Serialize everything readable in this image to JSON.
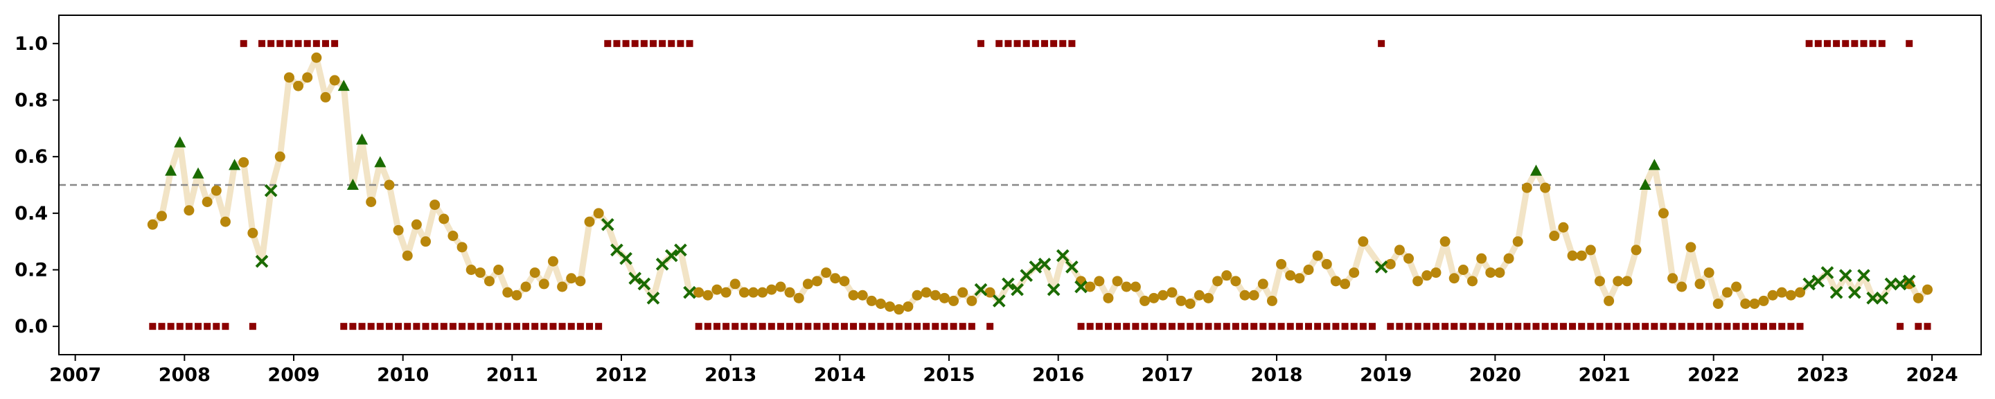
{
  "chart_data": {
    "type": "scatter",
    "title": "",
    "xlabel": "",
    "ylabel": "",
    "x_axis": {
      "type": "year",
      "range": [
        2006.85,
        2024.45
      ],
      "ticks": [
        "2007",
        "2008",
        "2009",
        "2010",
        "2011",
        "2012",
        "2013",
        "2014",
        "2015",
        "2016",
        "2017",
        "2018",
        "2019",
        "2020",
        "2021",
        "2022",
        "2023",
        "2024"
      ]
    },
    "y_axis": {
      "range": [
        -0.1,
        1.1
      ],
      "ticks": [
        "0.0",
        "0.2",
        "0.4",
        "0.6",
        "0.8",
        "1.0"
      ]
    },
    "threshold": 0.5,
    "grid": false,
    "colors": {
      "line": "#f2e4c6",
      "circle": "#b8860b",
      "triangle": "#1a6b00",
      "cross": "#1a6b00",
      "square": "#8b0000",
      "threshold": "#888888"
    },
    "series": [
      {
        "marker": "circle",
        "points": [
          [
            "2007-09",
            0.36
          ],
          [
            "2007-10",
            0.39
          ],
          [
            "2008-01",
            0.41
          ],
          [
            "2008-03",
            0.44
          ],
          [
            "2008-04",
            0.48
          ],
          [
            "2008-05",
            0.37
          ],
          [
            "2008-07",
            0.58
          ],
          [
            "2008-08",
            0.33
          ],
          [
            "2008-11",
            0.6
          ],
          [
            "2008-12",
            0.88
          ],
          [
            "2009-01",
            0.85
          ],
          [
            "2009-02",
            0.88
          ],
          [
            "2009-03",
            0.95
          ],
          [
            "2009-04",
            0.81
          ],
          [
            "2009-05",
            0.87
          ],
          [
            "2009-09",
            0.44
          ],
          [
            "2009-11",
            0.5
          ],
          [
            "2009-12",
            0.34
          ],
          [
            "2010-01",
            0.25
          ],
          [
            "2010-02",
            0.36
          ],
          [
            "2010-03",
            0.3
          ],
          [
            "2010-04",
            0.43
          ],
          [
            "2010-05",
            0.38
          ],
          [
            "2010-06",
            0.32
          ],
          [
            "2010-07",
            0.28
          ],
          [
            "2010-08",
            0.2
          ],
          [
            "2010-09",
            0.19
          ],
          [
            "2010-10",
            0.16
          ],
          [
            "2010-11",
            0.2
          ],
          [
            "2010-12",
            0.12
          ],
          [
            "2011-01",
            0.11
          ],
          [
            "2011-02",
            0.14
          ],
          [
            "2011-03",
            0.19
          ],
          [
            "2011-04",
            0.15
          ],
          [
            "2011-05",
            0.23
          ],
          [
            "2011-06",
            0.14
          ],
          [
            "2011-07",
            0.17
          ],
          [
            "2011-08",
            0.16
          ],
          [
            "2011-09",
            0.37
          ],
          [
            "2011-10",
            0.4
          ],
          [
            "2012-09",
            0.12
          ],
          [
            "2012-10",
            0.11
          ],
          [
            "2012-11",
            0.13
          ],
          [
            "2012-12",
            0.12
          ],
          [
            "2013-01",
            0.15
          ],
          [
            "2013-02",
            0.12
          ],
          [
            "2013-03",
            0.12
          ],
          [
            "2013-04",
            0.12
          ],
          [
            "2013-05",
            0.13
          ],
          [
            "2013-06",
            0.14
          ],
          [
            "2013-07",
            0.12
          ],
          [
            "2013-08",
            0.1
          ],
          [
            "2013-09",
            0.15
          ],
          [
            "2013-10",
            0.16
          ],
          [
            "2013-11",
            0.19
          ],
          [
            "2013-12",
            0.17
          ],
          [
            "2014-01",
            0.16
          ],
          [
            "2014-02",
            0.11
          ],
          [
            "2014-03",
            0.11
          ],
          [
            "2014-04",
            0.09
          ],
          [
            "2014-05",
            0.08
          ],
          [
            "2014-06",
            0.07
          ],
          [
            "2014-07",
            0.06
          ],
          [
            "2014-08",
            0.07
          ],
          [
            "2014-09",
            0.11
          ],
          [
            "2014-10",
            0.12
          ],
          [
            "2014-11",
            0.11
          ],
          [
            "2014-12",
            0.1
          ],
          [
            "2015-01",
            0.09
          ],
          [
            "2015-02",
            0.12
          ],
          [
            "2015-03",
            0.09
          ],
          [
            "2015-05",
            0.12
          ],
          [
            "2016-03",
            0.16
          ],
          [
            "2016-04",
            0.14
          ],
          [
            "2016-05",
            0.16
          ],
          [
            "2016-06",
            0.1
          ],
          [
            "2016-07",
            0.16
          ],
          [
            "2016-08",
            0.14
          ],
          [
            "2016-09",
            0.14
          ],
          [
            "2016-10",
            0.09
          ],
          [
            "2016-11",
            0.1
          ],
          [
            "2016-12",
            0.11
          ],
          [
            "2017-01",
            0.12
          ],
          [
            "2017-02",
            0.09
          ],
          [
            "2017-03",
            0.08
          ],
          [
            "2017-04",
            0.11
          ],
          [
            "2017-05",
            0.1
          ],
          [
            "2017-06",
            0.16
          ],
          [
            "2017-07",
            0.18
          ],
          [
            "2017-08",
            0.16
          ],
          [
            "2017-09",
            0.11
          ],
          [
            "2017-10",
            0.11
          ],
          [
            "2017-11",
            0.15
          ],
          [
            "2017-12",
            0.09
          ],
          [
            "2018-01",
            0.22
          ],
          [
            "2018-02",
            0.18
          ],
          [
            "2018-03",
            0.17
          ],
          [
            "2018-04",
            0.2
          ],
          [
            "2018-05",
            0.25
          ],
          [
            "2018-06",
            0.22
          ],
          [
            "2018-07",
            0.16
          ],
          [
            "2018-08",
            0.15
          ],
          [
            "2018-09",
            0.19
          ],
          [
            "2018-10",
            0.3
          ],
          [
            "2019-01",
            0.22
          ],
          [
            "2019-02",
            0.27
          ],
          [
            "2019-03",
            0.24
          ],
          [
            "2019-04",
            0.16
          ],
          [
            "2019-05",
            0.18
          ],
          [
            "2019-06",
            0.19
          ],
          [
            "2019-07",
            0.3
          ],
          [
            "2019-08",
            0.17
          ],
          [
            "2019-09",
            0.2
          ],
          [
            "2019-10",
            0.16
          ],
          [
            "2019-11",
            0.24
          ],
          [
            "2019-12",
            0.19
          ],
          [
            "2020-01",
            0.19
          ],
          [
            "2020-02",
            0.24
          ],
          [
            "2020-03",
            0.3
          ],
          [
            "2020-04",
            0.49
          ],
          [
            "2020-06",
            0.49
          ],
          [
            "2020-07",
            0.32
          ],
          [
            "2020-08",
            0.35
          ],
          [
            "2020-09",
            0.25
          ],
          [
            "2020-10",
            0.25
          ],
          [
            "2020-11",
            0.27
          ],
          [
            "2020-12",
            0.16
          ],
          [
            "2021-01",
            0.09
          ],
          [
            "2021-02",
            0.16
          ],
          [
            "2021-03",
            0.16
          ],
          [
            "2021-04",
            0.27
          ],
          [
            "2021-07",
            0.4
          ],
          [
            "2021-08",
            0.17
          ],
          [
            "2021-09",
            0.14
          ],
          [
            "2021-10",
            0.28
          ],
          [
            "2021-11",
            0.15
          ],
          [
            "2021-12",
            0.19
          ],
          [
            "2022-01",
            0.08
          ],
          [
            "2022-02",
            0.12
          ],
          [
            "2022-03",
            0.14
          ],
          [
            "2022-04",
            0.08
          ],
          [
            "2022-05",
            0.08
          ],
          [
            "2022-06",
            0.09
          ],
          [
            "2022-07",
            0.11
          ],
          [
            "2022-08",
            0.12
          ],
          [
            "2022-09",
            0.11
          ],
          [
            "2022-10",
            0.12
          ],
          [
            "2023-10",
            0.15
          ],
          [
            "2023-11",
            0.1
          ],
          [
            "2023-12",
            0.13
          ]
        ]
      },
      {
        "marker": "triangle",
        "points": [
          [
            "2007-11",
            0.55
          ],
          [
            "2007-12",
            0.65
          ],
          [
            "2008-02",
            0.54
          ],
          [
            "2008-06",
            0.57
          ],
          [
            "2009-06",
            0.85
          ],
          [
            "2009-07",
            0.5
          ],
          [
            "2009-08",
            0.66
          ],
          [
            "2009-10",
            0.58
          ],
          [
            "2020-05",
            0.55
          ],
          [
            "2021-05",
            0.5
          ],
          [
            "2021-06",
            0.57
          ]
        ]
      },
      {
        "marker": "cross",
        "points": [
          [
            "2008-09",
            0.23
          ],
          [
            "2008-10",
            0.48
          ],
          [
            "2011-11",
            0.36
          ],
          [
            "2011-12",
            0.27
          ],
          [
            "2012-01",
            0.24
          ],
          [
            "2012-02",
            0.17
          ],
          [
            "2012-03",
            0.15
          ],
          [
            "2012-04",
            0.1
          ],
          [
            "2012-05",
            0.22
          ],
          [
            "2012-06",
            0.25
          ],
          [
            "2012-07",
            0.27
          ],
          [
            "2012-08",
            0.12
          ],
          [
            "2015-04",
            0.13
          ],
          [
            "2015-06",
            0.09
          ],
          [
            "2015-07",
            0.15
          ],
          [
            "2015-08",
            0.13
          ],
          [
            "2015-09",
            0.18
          ],
          [
            "2015-10",
            0.21
          ],
          [
            "2015-11",
            0.22
          ],
          [
            "2015-12",
            0.13
          ],
          [
            "2016-01",
            0.25
          ],
          [
            "2016-02",
            0.21
          ],
          [
            "2016-03",
            0.14
          ],
          [
            "2018-12",
            0.21
          ],
          [
            "2022-11",
            0.15
          ],
          [
            "2022-12",
            0.16
          ],
          [
            "2023-01",
            0.19
          ],
          [
            "2023-02",
            0.12
          ],
          [
            "2023-03",
            0.18
          ],
          [
            "2023-04",
            0.12
          ],
          [
            "2023-05",
            0.18
          ],
          [
            "2023-06",
            0.1
          ],
          [
            "2023-07",
            0.1
          ],
          [
            "2023-08",
            0.15
          ],
          [
            "2023-09",
            0.15
          ],
          [
            "2023-10",
            0.16
          ]
        ]
      }
    ],
    "regime_markers": {
      "marker": "square",
      "high": {
        "value": 1.0,
        "ranges": [
          [
            "2008-07",
            "2008-07"
          ],
          [
            "2008-09",
            "2009-05"
          ],
          [
            "2011-11",
            "2012-08"
          ],
          [
            "2015-04",
            "2015-04"
          ],
          [
            "2015-06",
            "2016-02"
          ],
          [
            "2018-12",
            "2018-12"
          ],
          [
            "2022-11",
            "2023-07"
          ],
          [
            "2023-10",
            "2023-10"
          ]
        ]
      },
      "low": {
        "value": 0.0,
        "ranges": [
          [
            "2007-09",
            "2008-05"
          ],
          [
            "2008-08",
            "2008-08"
          ],
          [
            "2009-06",
            "2011-10"
          ],
          [
            "2012-09",
            "2015-03"
          ],
          [
            "2015-05",
            "2015-05"
          ],
          [
            "2016-03",
            "2018-11"
          ],
          [
            "2019-01",
            "2022-10"
          ],
          [
            "2023-09",
            "2023-09"
          ],
          [
            "2023-11",
            "2023-12"
          ]
        ]
      }
    }
  }
}
